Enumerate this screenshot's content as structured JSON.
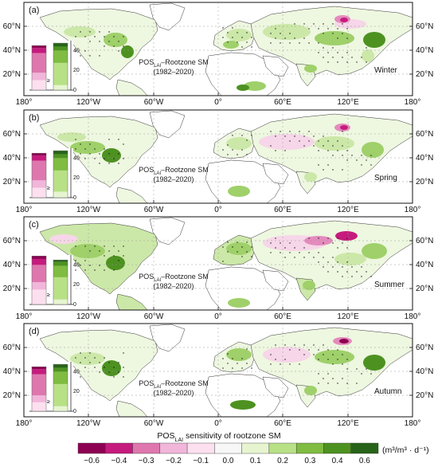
{
  "panels": [
    {
      "letter": "(a)",
      "season": "Winter",
      "title_main": "POS",
      "title_sub": "LAI",
      "title_rest": "–Rootzone SM",
      "title_period": "(1982–2020)",
      "inset": {
        "pink": [
          0.2,
          0.35,
          0.75,
          0.85,
          0.9
        ],
        "green": [
          0.1,
          0.55,
          0.8,
          0.88,
          0.95
        ]
      }
    },
    {
      "letter": "(b)",
      "season": "Spring",
      "title_main": "POS",
      "title_sub": "LAI",
      "title_rest": "–Rootzone SM",
      "title_period": "(1982–2020)",
      "inset": {
        "pink": [
          0.2,
          0.35,
          0.75,
          0.85,
          0.9
        ],
        "green": [
          0.12,
          0.55,
          0.8,
          0.88,
          0.95
        ]
      }
    },
    {
      "letter": "(c)",
      "season": "Summer",
      "title_main": "POS",
      "title_sub": "LAI",
      "title_rest": "–Rootzone SM",
      "title_period": "(1982–2020)",
      "inset": {
        "pink": [
          0.3,
          0.45,
          0.8,
          0.92,
          0.98
        ],
        "green": [
          0.1,
          0.55,
          0.78,
          0.86,
          0.9
        ]
      }
    },
    {
      "letter": "(d)",
      "season": "Autumn",
      "title_main": "POS",
      "title_sub": "LAI",
      "title_rest": "–Rootzone SM",
      "title_period": "(1982–2020)",
      "inset": {
        "pink": [
          0.18,
          0.32,
          0.75,
          0.85,
          0.9
        ],
        "green": [
          0.1,
          0.55,
          0.8,
          0.88,
          0.95
        ]
      }
    }
  ],
  "lon_ticks": [
    "180°",
    "120°W",
    "60°W",
    "0°",
    "60°E",
    "120°E",
    "180°"
  ],
  "lat_ticks": [
    "20°N",
    "40°N",
    "60°N"
  ],
  "inset_ticks": [
    "0",
    "20",
    "40"
  ],
  "inset_mark": "≥",
  "colorbar": {
    "title_main": "POS",
    "title_sub": "LAI",
    "title_rest": " sensitivity of rootzone SM",
    "unit": "(m³/m³ · d⁻¹)",
    "ticks": [
      "−0.6",
      "−0.4",
      "−0.3",
      "−0.2",
      "−0.1",
      "0.0",
      "0.1",
      "0.2",
      "0.3",
      "0.4",
      "0.6"
    ],
    "colors": [
      "#8e0152",
      "#c51b7d",
      "#de77ae",
      "#f1b6da",
      "#fde0ef",
      "#f7f7f7",
      "#e6f5d0",
      "#b8e186",
      "#7fbc41",
      "#4d9221",
      "#276419"
    ]
  },
  "colors": {
    "land_base": "#eef7e0",
    "green_light": "#cce8a8",
    "green_mid": "#9fd06a",
    "green_dark": "#4d9221",
    "pink_light": "#f6d6e8",
    "pink_mid": "#e48bbd",
    "magenta": "#c51b7d",
    "desert": "#ffffff"
  }
}
